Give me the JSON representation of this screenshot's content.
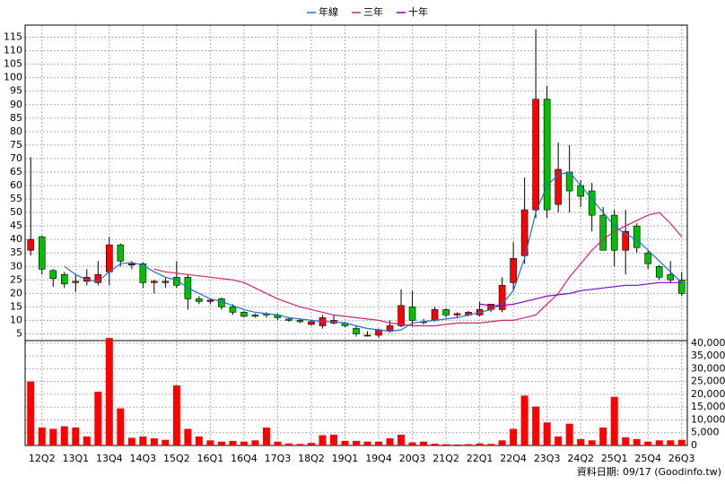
{
  "chart_data": {
    "type": "candlestick",
    "categories": [
      null,
      "12Q2",
      null,
      null,
      "13Q1",
      null,
      null,
      "13Q4",
      null,
      null,
      "14Q3",
      null,
      null,
      "15Q2",
      null,
      null,
      "16Q1",
      null,
      null,
      "16Q4",
      null,
      null,
      "17Q3",
      null,
      null,
      "18Q2",
      null,
      null,
      "19Q1",
      null,
      null,
      "19Q4",
      null,
      null,
      "20Q3",
      null,
      null,
      "21Q2",
      null,
      null,
      "22Q1",
      null,
      null,
      "22Q4",
      null,
      null,
      "23Q3",
      null,
      null,
      "24Q2",
      null,
      null,
      "25Q1",
      null,
      null,
      "25Q4",
      null,
      null,
      "26Q3"
    ],
    "open": [
      36,
      41,
      28.5,
      27,
      24,
      24.5,
      24,
      28,
      38,
      30.5,
      31,
      24,
      24,
      26,
      26,
      18,
      17,
      18,
      15,
      13,
      12,
      12.5,
      12,
      10.5,
      10,
      8.5,
      8,
      9,
      9,
      7,
      4.5,
      4.5,
      6,
      8,
      15,
      9.5,
      10,
      14,
      12,
      12,
      12,
      14,
      14,
      24,
      34,
      51,
      92,
      53,
      65,
      60,
      58,
      49,
      49,
      36,
      45,
      35,
      30,
      27,
      25
    ],
    "high": [
      70.5,
      41.5,
      29,
      28,
      27,
      29,
      32,
      41,
      38.5,
      32,
      31.5,
      25,
      26,
      32,
      27,
      19,
      18,
      18.5,
      16,
      13.5,
      12.5,
      13,
      12.5,
      11,
      10.5,
      10,
      12,
      12,
      9.5,
      8,
      6,
      7,
      10,
      21.5,
      21,
      10.5,
      15,
      14.5,
      13,
      13.5,
      17,
      16,
      26,
      39,
      63,
      118,
      97,
      76,
      75,
      62,
      61,
      52,
      51,
      51,
      46,
      36,
      30.5,
      32,
      28
    ],
    "low": [
      34,
      27,
      22.5,
      22,
      20.5,
      23,
      23,
      23,
      30,
      29,
      22,
      20,
      22,
      22,
      14,
      16,
      16,
      14,
      12,
      11,
      11,
      11,
      10,
      9.5,
      9,
      8,
      7,
      8.5,
      7.5,
      4,
      4,
      3.5,
      5.5,
      7.5,
      8,
      8.5,
      9.5,
      11,
      11,
      11.5,
      11.5,
      13,
      13,
      21,
      31,
      48,
      48,
      50,
      50,
      52,
      43,
      36,
      30,
      27,
      35,
      29,
      25,
      24,
      19
    ],
    "close": [
      40,
      29,
      25.5,
      23.5,
      24.5,
      26,
      27,
      38,
      32,
      31,
      24,
      24.5,
      24.5,
      23,
      18,
      17,
      17.5,
      15,
      13,
      11.5,
      11.5,
      12,
      11,
      10,
      9.5,
      9.5,
      11,
      10,
      8,
      5,
      4.5,
      6.5,
      8,
      15.5,
      10,
      9.5,
      14,
      12,
      12.5,
      13,
      14,
      16,
      23,
      33,
      51,
      92,
      51,
      66,
      58,
      56,
      49,
      36,
      36,
      43,
      37,
      31,
      26,
      25,
      20
    ],
    "up_color": "#ff0000",
    "down_color": "#00c000",
    "ylim": [
      2.5,
      119.5
    ],
    "yticks": [
      5,
      10,
      15,
      20,
      25,
      30,
      35,
      40,
      45,
      50,
      55,
      60,
      65,
      70,
      75,
      80,
      85,
      90,
      95,
      100,
      105,
      110,
      115
    ],
    "grid": true,
    "volume": {
      "values": [
        25000,
        7000,
        6500,
        7500,
        7000,
        3500,
        21000,
        42000,
        14500,
        3000,
        3500,
        2800,
        2200,
        23500,
        6500,
        3500,
        2000,
        1500,
        1800,
        1500,
        2000,
        7000,
        1500,
        800,
        600,
        1000,
        4000,
        4200,
        1800,
        1800,
        1500,
        1500,
        2800,
        4200,
        1200,
        1500,
        700,
        500,
        400,
        500,
        800,
        600,
        2000,
        6500,
        19500,
        15200,
        9000,
        3500,
        8500,
        2500,
        2000,
        7000,
        19000,
        3200,
        2500,
        1500,
        2000,
        2000,
        2200
      ],
      "color": "#ff0000",
      "ylim": [
        0,
        41000
      ],
      "yticks": [
        0,
        {
          "value": 5000,
          "label": "5,000"
        },
        {
          "value": 10000,
          "label": "10,000"
        },
        {
          "value": 15000,
          "label": "15,000"
        },
        {
          "value": 20000,
          "label": "20,000"
        },
        {
          "value": 25000,
          "label": "25,000"
        },
        {
          "value": 30000,
          "label": "30,000"
        },
        {
          "value": 35000,
          "label": "35,000"
        },
        {
          "value": 40000,
          "label": "40,000"
        }
      ]
    },
    "series": [
      {
        "name": "年線",
        "color": "#1f6fd0",
        "values": [
          null,
          null,
          null,
          30,
          27,
          25,
          24.5,
          28,
          31,
          31.5,
          30.5,
          28,
          26,
          25,
          22,
          20,
          18,
          17,
          15.5,
          14,
          13,
          12.5,
          12,
          11,
          10.5,
          10,
          9.5,
          9.5,
          9,
          8,
          7,
          6.5,
          6,
          6.5,
          9,
          9.5,
          10,
          10.5,
          11,
          12,
          13,
          14,
          16,
          21,
          33,
          50,
          60,
          64,
          65,
          60,
          55,
          50,
          45,
          42,
          40,
          36,
          32,
          28,
          24
        ]
      },
      {
        "name": "三年",
        "color": "#d0207a",
        "values": [
          null,
          null,
          null,
          null,
          null,
          null,
          null,
          null,
          null,
          null,
          null,
          29,
          28,
          27.5,
          27,
          26.5,
          26,
          25.5,
          25,
          24,
          22,
          20,
          18,
          16.5,
          15,
          14,
          13,
          12,
          11.5,
          11,
          10.5,
          10,
          9,
          8.5,
          8,
          8,
          8,
          8.5,
          9,
          9,
          9,
          9.5,
          10,
          10,
          11,
          12,
          16,
          20,
          26,
          31,
          36,
          40,
          43,
          45,
          47,
          49,
          50,
          46,
          41
        ]
      },
      {
        "name": "十年",
        "color": "#8000c0",
        "values": [
          null,
          null,
          null,
          null,
          null,
          null,
          null,
          null,
          null,
          null,
          null,
          null,
          null,
          null,
          null,
          null,
          null,
          null,
          null,
          null,
          null,
          null,
          null,
          null,
          null,
          null,
          null,
          null,
          null,
          null,
          null,
          null,
          null,
          null,
          null,
          null,
          null,
          null,
          null,
          null,
          16,
          15.5,
          15.5,
          16,
          17,
          18,
          19,
          19.5,
          20,
          21,
          21.5,
          22,
          22.5,
          23,
          23,
          23.5,
          24,
          24,
          24
        ]
      }
    ],
    "footer": "資料日期: 09/17  (Goodinfo.tw)"
  }
}
